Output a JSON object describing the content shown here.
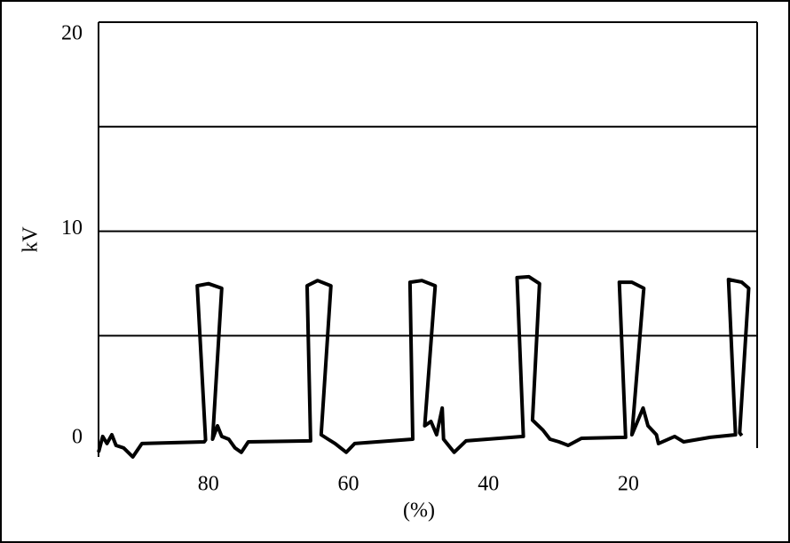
{
  "chart_data": {
    "type": "line",
    "y_label": "kV",
    "x_label": "(%)",
    "xlim": [
      95.7,
      1.6
    ],
    "xticks": [
      80,
      60,
      40,
      20
    ],
    "ylim": [
      -0.8,
      20
    ],
    "yticks": [
      0,
      10,
      20
    ],
    "ygrid": [
      5,
      10,
      15,
      20
    ],
    "series": [
      {
        "color": "#000000",
        "x": [
          95.7,
          95.1,
          94.5,
          93.8,
          93.2,
          92.1,
          90.8,
          89.5,
          80.6,
          80.4,
          81.6,
          80.0,
          78.1,
          79.4,
          78.7,
          78.1,
          77.1,
          76.2,
          75.3,
          74.3,
          65.4,
          65.9,
          64.4,
          62.5,
          63.9,
          62.9,
          61.9,
          60.3,
          59.1,
          50.8,
          51.2,
          49.5,
          47.6,
          49.1,
          48.2,
          47.4,
          46.6,
          46.4,
          44.9,
          43.2,
          35.0,
          35.9,
          34.2,
          32.7,
          33.7,
          32.2,
          31.2,
          29.9,
          28.6,
          26.7,
          20.4,
          21.3,
          19.5,
          17.8,
          19.5,
          17.9,
          17.2,
          16.0,
          15.7,
          13.4,
          12.1,
          8.3,
          4.7,
          5.7,
          3.8,
          2.8,
          4.1,
          3.8
        ],
        "values": [
          -0.58,
          0.18,
          -0.16,
          0.26,
          -0.25,
          -0.37,
          -0.8,
          -0.16,
          -0.08,
          0.01,
          7.39,
          7.49,
          7.27,
          0.05,
          0.69,
          0.18,
          0.05,
          -0.37,
          -0.58,
          -0.08,
          -0.03,
          7.39,
          7.64,
          7.39,
          0.26,
          0.05,
          -0.16,
          -0.58,
          -0.16,
          0.05,
          7.56,
          7.64,
          7.39,
          0.69,
          0.9,
          0.26,
          1.54,
          0.05,
          -0.58,
          -0.03,
          0.18,
          7.78,
          7.82,
          7.49,
          0.96,
          0.48,
          0.05,
          -0.08,
          -0.25,
          0.09,
          0.14,
          7.56,
          7.56,
          7.27,
          0.26,
          1.54,
          0.69,
          0.26,
          -0.16,
          0.18,
          -0.08,
          0.14,
          0.26,
          7.69,
          7.56,
          7.27,
          0.35,
          0.22
        ]
      }
    ]
  }
}
